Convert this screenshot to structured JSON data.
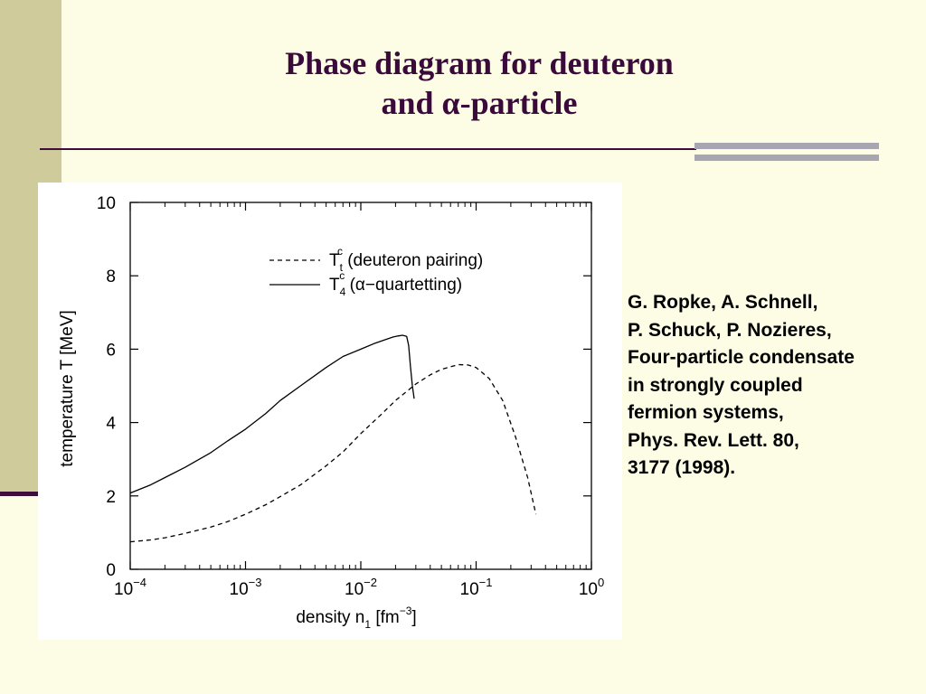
{
  "slide": {
    "title_line1": "Phase diagram for deuteron",
    "title_line2": "and α-particle"
  },
  "citation": {
    "lines": [
      "G. Ropke, A. Schnell,",
      "P. Schuck, P. Nozieres,",
      "Four-particle condensate",
      "in strongly coupled",
      "fermion systems,",
      "Phys. Rev. Lett. 80,",
      "3177 (1998)."
    ]
  },
  "chart_data": {
    "type": "line",
    "xlabel": "density n",
    "xlabel_sub": "1",
    "xlabel_unit": " [fm",
    "xlabel_unit_sup": "−3",
    "xlabel_unit_end": "]",
    "ylabel": "temperature T [MeV]",
    "x_scale": "log",
    "xlim": [
      0.0001,
      1
    ],
    "ylim": [
      0,
      10
    ],
    "x_ticks": [
      {
        "value": 0.0001,
        "base": "10",
        "exp": "−4"
      },
      {
        "value": 0.001,
        "base": "10",
        "exp": "−3"
      },
      {
        "value": 0.01,
        "base": "10",
        "exp": "−2"
      },
      {
        "value": 0.1,
        "base": "10",
        "exp": "−1"
      },
      {
        "value": 1,
        "base": "10",
        "exp": "0"
      }
    ],
    "y_ticks": [
      0,
      2,
      4,
      6,
      8,
      10
    ],
    "grid": false,
    "legend_position": "top-right",
    "series": [
      {
        "label_main": "T",
        "label_sub": "t",
        "label_sup": "c",
        "label_text": " (deuteron pairing)",
        "style": "dashed",
        "x": [
          0.0001,
          0.00015,
          0.0002,
          0.0003,
          0.0005,
          0.0007,
          0.001,
          0.0015,
          0.002,
          0.003,
          0.005,
          0.007,
          0.01,
          0.015,
          0.02,
          0.03,
          0.04,
          0.05,
          0.07,
          0.085,
          0.1,
          0.13,
          0.17,
          0.22,
          0.28,
          0.33
        ],
        "y": [
          0.75,
          0.8,
          0.86,
          0.98,
          1.15,
          1.3,
          1.5,
          1.76,
          1.98,
          2.3,
          2.82,
          3.2,
          3.7,
          4.22,
          4.6,
          5.05,
          5.3,
          5.45,
          5.58,
          5.57,
          5.5,
          5.2,
          4.6,
          3.6,
          2.5,
          1.5
        ]
      },
      {
        "label_main": "T",
        "label_sub": "4",
        "label_sup": "c",
        "label_text": " (α−quartetting)",
        "style": "solid",
        "x": [
          0.0001,
          0.00015,
          0.0002,
          0.0003,
          0.0005,
          0.0007,
          0.001,
          0.0015,
          0.002,
          0.003,
          0.005,
          0.007,
          0.01,
          0.013,
          0.016,
          0.019,
          0.021,
          0.023,
          0.025,
          0.026,
          0.027,
          0.028,
          0.029
        ],
        "y": [
          2.08,
          2.3,
          2.5,
          2.78,
          3.18,
          3.5,
          3.82,
          4.25,
          4.6,
          5.0,
          5.5,
          5.8,
          6.0,
          6.15,
          6.25,
          6.33,
          6.36,
          6.38,
          6.35,
          6.1,
          5.5,
          5.0,
          4.65
        ]
      }
    ]
  }
}
